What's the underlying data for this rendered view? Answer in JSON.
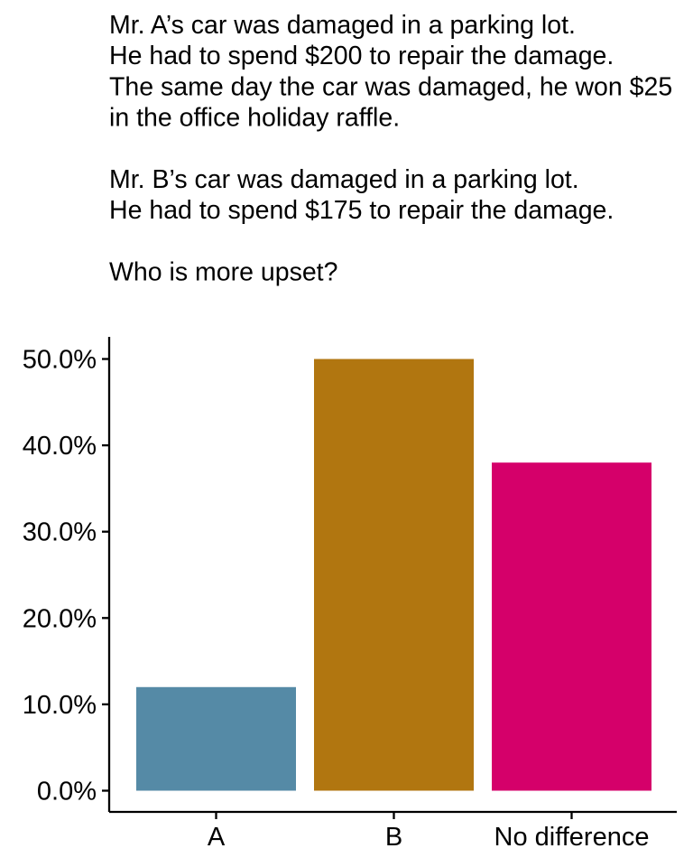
{
  "chart_data": {
    "type": "bar",
    "title_lines": [
      "Mr. A’s car was damaged in a parking lot.",
      "He had to spend $200 to repair the damage.",
      "The same day the car was damaged, he won $25",
      "in the office holiday raffle.",
      "",
      "Mr. B’s car was damaged in a parking lot.",
      "He had to spend $175 to repair the damage.",
      "",
      "Who is more upset?"
    ],
    "categories": [
      "A",
      "B",
      "No difference"
    ],
    "values": [
      12,
      50,
      38
    ],
    "colors": [
      "#558aa6",
      "#b17610",
      "#d5006a"
    ],
    "xlabel": "",
    "ylabel": "",
    "ylim": [
      0,
      50
    ],
    "y_ticks": [
      0,
      10,
      20,
      30,
      40,
      50
    ],
    "y_tick_labels": [
      "0.0%",
      "10.0%",
      "20.0%",
      "30.0%",
      "40.0%",
      "50.0%"
    ],
    "grid": false,
    "legend": "none"
  }
}
